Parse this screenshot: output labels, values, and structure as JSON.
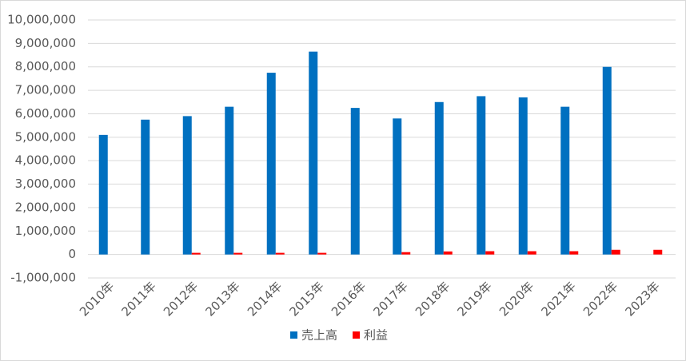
{
  "chart_data": {
    "type": "bar",
    "categories": [
      "2010年",
      "2011年",
      "2012年",
      "2013年",
      "2014年",
      "2015年",
      "2016年",
      "2017年",
      "2018年",
      "2019年",
      "2020年",
      "2021年",
      "2022年",
      "2023年"
    ],
    "series": [
      {
        "name": "売上高",
        "color": "#0070c0",
        "values": [
          5100000,
          5750000,
          5900000,
          6300000,
          7750000,
          8650000,
          6250000,
          5800000,
          6500000,
          6750000,
          6700000,
          6300000,
          8000000,
          null
        ]
      },
      {
        "name": "利益",
        "color": "#ff0000",
        "values": [
          null,
          null,
          70000,
          70000,
          70000,
          70000,
          null,
          100000,
          130000,
          140000,
          140000,
          140000,
          200000,
          200000
        ]
      }
    ],
    "ylim": [
      -1000000,
      10000000
    ],
    "yticks": [
      {
        "value": -1000000,
        "label": "-1,000,000"
      },
      {
        "value": 0,
        "label": "0"
      },
      {
        "value": 1000000,
        "label": "1,000,000"
      },
      {
        "value": 2000000,
        "label": "2,000,000"
      },
      {
        "value": 3000000,
        "label": "3,000,000"
      },
      {
        "value": 4000000,
        "label": "4,000,000"
      },
      {
        "value": 5000000,
        "label": "5,000,000"
      },
      {
        "value": 6000000,
        "label": "6,000,000"
      },
      {
        "value": 7000000,
        "label": "7,000,000"
      },
      {
        "value": 8000000,
        "label": "8,000,000"
      },
      {
        "value": 9000000,
        "label": "9,000,000"
      },
      {
        "value": 10000000,
        "label": "10,000,000"
      }
    ],
    "grid": true,
    "legend": "bottom"
  }
}
